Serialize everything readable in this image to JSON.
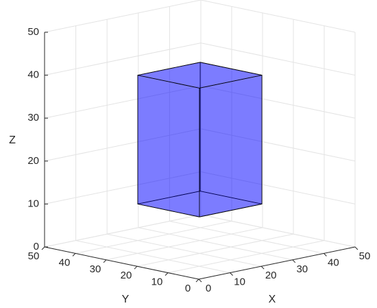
{
  "chart_data": {
    "type": "box3d",
    "xlabel": "X",
    "ylabel": "Y",
    "zlabel": "Z",
    "xlim": [
      0,
      50
    ],
    "ylim": [
      0,
      50
    ],
    "zlim": [
      0,
      50
    ],
    "xticks": [
      0,
      10,
      20,
      30,
      40,
      50
    ],
    "yticks": [
      0,
      10,
      20,
      30,
      40,
      50
    ],
    "zticks": [
      0,
      10,
      20,
      30,
      40,
      50
    ],
    "grid": true,
    "box": {
      "x": [
        15,
        35
      ],
      "y": [
        15,
        35
      ],
      "z": [
        10,
        40
      ]
    },
    "color": "#0000ff",
    "face_alpha": 0.3,
    "edge_color": "#000000"
  }
}
